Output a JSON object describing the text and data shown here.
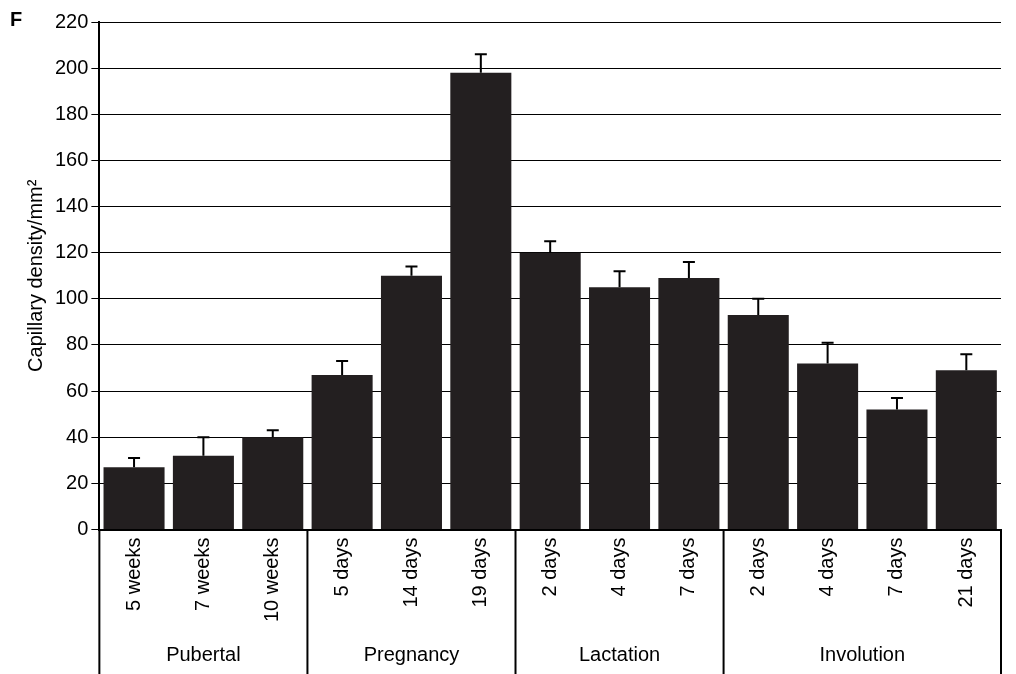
{
  "chart_data": {
    "type": "bar",
    "ylabel": "Capillary density/mm²",
    "categories": [
      "5 weeks",
      "7 weeks",
      "10 weeks",
      "5 days",
      "14 days",
      "19 days",
      "2 days",
      "4 days",
      "7 days",
      "2 days",
      "4 days",
      "7 days",
      "21 days"
    ],
    "values": [
      27,
      32,
      40,
      67,
      110,
      198,
      120,
      105,
      109,
      93,
      72,
      52,
      69
    ],
    "errors": [
      [
        27,
        31
      ],
      [
        32,
        40
      ],
      [
        40,
        43
      ],
      [
        67,
        73
      ],
      [
        110,
        114
      ],
      [
        198,
        206
      ],
      [
        120,
        125
      ],
      [
        105,
        112
      ],
      [
        109,
        116
      ],
      [
        93,
        100
      ],
      [
        72,
        81
      ],
      [
        52,
        57
      ],
      [
        69,
        76
      ]
    ],
    "color": "#231f20",
    "ylim": [
      0,
      220
    ],
    "yticks": [
      0,
      20,
      40,
      60,
      80,
      100,
      120,
      140,
      160,
      180,
      200,
      220
    ],
    "grid": "y",
    "legend": false,
    "annotations": [
      "Pubertal",
      "Pregnancy",
      "Lactation",
      "Involution",
      "F"
    ]
  }
}
